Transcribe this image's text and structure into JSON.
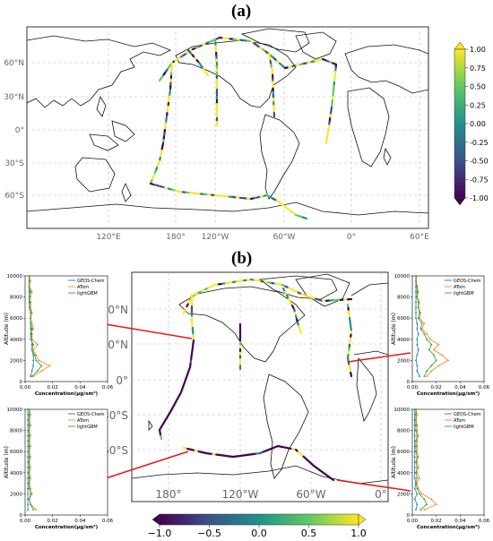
{
  "panel_labels": {
    "a": "(a)",
    "b": "(b)"
  },
  "colors": {
    "track_low": "#440154",
    "track_mid": "#21918c",
    "track_high": "#fde725",
    "geos": "#1f77b4",
    "atom": "#ff7f0e",
    "lightgbm": "#2ca02c",
    "connector": "#e41a1c"
  },
  "chart_data": [
    {
      "type": "map",
      "panel": "(a)",
      "lon_ticks": [
        "120°E",
        "180°",
        "120°W",
        "60°W",
        "0°",
        "60°E"
      ],
      "lat_ticks": [
        "60°N",
        "30°N",
        "0°",
        "30°S",
        "60°S"
      ],
      "colorbar": {
        "orientation": "vertical",
        "ticks": [
          "1.00",
          "0.75",
          "0.50",
          "0.25",
          "0.00",
          "-0.25",
          "-0.50",
          "-0.75",
          "-1.00"
        ],
        "range": [
          -1.0,
          1.0
        ],
        "cmap": "viridis"
      }
    },
    {
      "type": "map",
      "panel": "(b)",
      "lon_ticks": [
        "180°",
        "120°W",
        "60°W",
        "0°"
      ],
      "lat_ticks": [
        "60°N",
        "30°N",
        "0°",
        "30°S",
        "60°S"
      ],
      "colorbar": {
        "orientation": "horizontal",
        "ticks": [
          "−1.0",
          "−0.5",
          "0.0",
          "0.5",
          "1.0"
        ],
        "range": [
          -1.0,
          1.0
        ],
        "cmap": "viridis"
      }
    },
    {
      "type": "line",
      "position": "top-left",
      "xlabel": "Concentration(μg/sm³)",
      "ylabel": "Altitude (m)",
      "xticks": [
        "0.00",
        "0.02",
        "0.04",
        "0.06"
      ],
      "yticks": [
        "0",
        "2000",
        "4000",
        "6000",
        "8000",
        "10000"
      ],
      "xlim": [
        0,
        0.06
      ],
      "ylim": [
        0,
        10000
      ],
      "legend": [
        "GEOS-Chem",
        "ATom",
        "lightGBM"
      ],
      "altitudes": [
        500,
        1000,
        1500,
        2000,
        2500,
        3000,
        3500,
        4000,
        4500,
        5000,
        5500,
        6000,
        6500,
        7000,
        7500,
        8000,
        8500,
        9000,
        9500,
        10000
      ],
      "series": [
        {
          "name": "GEOS-Chem",
          "values": [
            0.004,
            0.005,
            0.006,
            0.006,
            0.006,
            0.005,
            0.005,
            0.005,
            0.005,
            0.004,
            0.004,
            0.004,
            0.004,
            0.004,
            0.004,
            0.003,
            0.003,
            0.003,
            0.003,
            0.003
          ]
        },
        {
          "name": "ATom",
          "values": [
            0.006,
            0.012,
            0.018,
            0.01,
            0.008,
            0.006,
            0.009,
            0.005,
            0.004,
            0.006,
            0.005,
            0.004,
            0.005,
            0.004,
            0.003,
            0.004,
            0.005,
            0.003,
            0.004,
            0.003
          ]
        },
        {
          "name": "lightGBM",
          "values": [
            0.005,
            0.009,
            0.012,
            0.008,
            0.007,
            0.005,
            0.006,
            0.004,
            0.004,
            0.005,
            0.004,
            0.004,
            0.004,
            0.003,
            0.003,
            0.003,
            0.004,
            0.003,
            0.003,
            0.003
          ]
        }
      ]
    },
    {
      "type": "line",
      "position": "bottom-left",
      "xlabel": "Concentration(μg/sm³)",
      "ylabel": "Altitude (m)",
      "xticks": [
        "0.00",
        "0.02",
        "0.04",
        "0.06"
      ],
      "yticks": [
        "0",
        "2000",
        "4000",
        "6000",
        "8000",
        "10000"
      ],
      "xlim": [
        0,
        0.06
      ],
      "ylim": [
        0,
        10000
      ],
      "legend": [
        "GEOS-Chem",
        "ATom",
        "lightGBM"
      ],
      "altitudes": [
        500,
        1000,
        1500,
        2000,
        2500,
        3000,
        3500,
        4000,
        4500,
        5000,
        5500,
        6000,
        6500,
        7000,
        7500,
        8000,
        8500,
        9000,
        9500,
        10000
      ],
      "series": [
        {
          "name": "GEOS-Chem",
          "values": [
            0.002,
            0.002,
            0.002,
            0.002,
            0.002,
            0.002,
            0.002,
            0.002,
            0.002,
            0.002,
            0.002,
            0.002,
            0.002,
            0.002,
            0.002,
            0.002,
            0.002,
            0.002,
            0.002,
            0.002
          ]
        },
        {
          "name": "ATom",
          "values": [
            0.008,
            0.004,
            0.003,
            0.005,
            0.004,
            0.003,
            0.004,
            0.003,
            0.004,
            0.003,
            0.004,
            0.003,
            0.004,
            0.003,
            0.004,
            0.003,
            0.004,
            0.003,
            0.004,
            0.003
          ]
        },
        {
          "name": "lightGBM",
          "values": [
            0.006,
            0.004,
            0.003,
            0.004,
            0.003,
            0.003,
            0.003,
            0.003,
            0.003,
            0.003,
            0.003,
            0.003,
            0.003,
            0.003,
            0.003,
            0.003,
            0.003,
            0.003,
            0.003,
            0.003
          ]
        }
      ]
    },
    {
      "type": "line",
      "position": "top-right",
      "xlabel": "Concentration(μg/sm³)",
      "ylabel": "Altitude (m)",
      "xticks": [
        "0.00",
        "0.02",
        "0.04",
        "0.06"
      ],
      "yticks": [
        "0",
        "2000",
        "4000",
        "6000",
        "8000",
        "10000"
      ],
      "xlim": [
        0,
        0.06
      ],
      "ylim": [
        0,
        10000
      ],
      "legend": [
        "GEOS-Chem",
        "ATom",
        "lightGBM"
      ],
      "altitudes": [
        500,
        1000,
        1500,
        2000,
        2500,
        3000,
        3500,
        4000,
        4500,
        5000,
        5500,
        6000,
        6500,
        7000,
        7500,
        8000,
        8500,
        9000,
        9500,
        10000
      ],
      "series": [
        {
          "name": "GEOS-Chem",
          "values": [
            0.006,
            0.004,
            0.004,
            0.003,
            0.004,
            0.005,
            0.004,
            0.004,
            0.005,
            0.004,
            0.004,
            0.003,
            0.003,
            0.003,
            0.003,
            0.003,
            0.003,
            0.003,
            0.003,
            0.003
          ]
        },
        {
          "name": "ATom",
          "values": [
            0.012,
            0.016,
            0.022,
            0.03,
            0.025,
            0.018,
            0.022,
            0.015,
            0.012,
            0.008,
            0.01,
            0.006,
            0.007,
            0.005,
            0.006,
            0.004,
            0.005,
            0.004,
            0.003,
            0.004
          ]
        },
        {
          "name": "lightGBM",
          "values": [
            0.01,
            0.012,
            0.016,
            0.02,
            0.018,
            0.014,
            0.016,
            0.012,
            0.01,
            0.007,
            0.008,
            0.005,
            0.006,
            0.005,
            0.005,
            0.004,
            0.004,
            0.004,
            0.003,
            0.003
          ]
        }
      ]
    },
    {
      "type": "line",
      "position": "bottom-right",
      "xlabel": "Concentration(μg/sm³)",
      "ylabel": "Altitude (m)",
      "xticks": [
        "0.00",
        "0.02",
        "0.04",
        "0.06"
      ],
      "yticks": [
        "0",
        "2000",
        "4000",
        "6000",
        "8000",
        "10000"
      ],
      "xlim": [
        0,
        0.06
      ],
      "ylim": [
        0,
        10000
      ],
      "legend": [
        "GEOS-Chem",
        "ATom",
        "lightGBM"
      ],
      "altitudes": [
        500,
        1000,
        1500,
        2000,
        2500,
        3000,
        3500,
        4000,
        4500,
        5000,
        5500,
        6000,
        6500,
        7000,
        7500,
        8000,
        8500,
        9000,
        9500,
        10000
      ],
      "series": [
        {
          "name": "GEOS-Chem",
          "values": [
            0.003,
            0.004,
            0.002,
            0.004,
            0.002,
            0.003,
            0.002,
            0.002,
            0.002,
            0.002,
            0.002,
            0.002,
            0.002,
            0.002,
            0.002,
            0.002,
            0.002,
            0.002,
            0.002,
            0.002
          ]
        },
        {
          "name": "ATom",
          "values": [
            0.01,
            0.02,
            0.016,
            0.008,
            0.005,
            0.004,
            0.006,
            0.004,
            0.005,
            0.004,
            0.005,
            0.004,
            0.004,
            0.004,
            0.005,
            0.004,
            0.004,
            0.003,
            0.004,
            0.003
          ]
        },
        {
          "name": "lightGBM",
          "values": [
            0.007,
            0.012,
            0.01,
            0.006,
            0.004,
            0.003,
            0.004,
            0.003,
            0.004,
            0.003,
            0.004,
            0.003,
            0.003,
            0.003,
            0.004,
            0.003,
            0.003,
            0.003,
            0.003,
            0.003
          ]
        }
      ]
    }
  ]
}
